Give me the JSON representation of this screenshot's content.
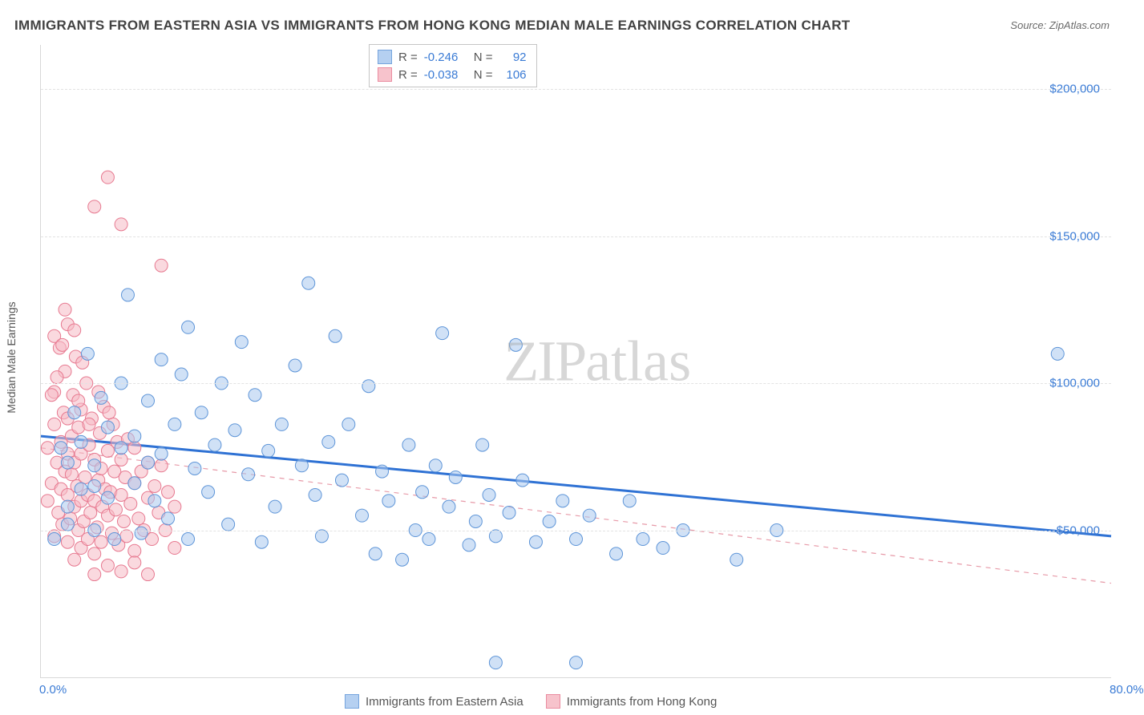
{
  "title": "IMMIGRANTS FROM EASTERN ASIA VS IMMIGRANTS FROM HONG KONG MEDIAN MALE EARNINGS CORRELATION CHART",
  "source_label": "Source:",
  "source_value": "ZipAtlas.com",
  "ylabel": "Median Male Earnings",
  "watermark": "ZIPatlas",
  "chart": {
    "type": "scatter",
    "xlim": [
      0,
      80
    ],
    "ylim": [
      0,
      215000
    ],
    "xtick_labels": {
      "0": "0.0%",
      "80": "80.0%"
    },
    "ytick_values": [
      50000,
      100000,
      150000,
      200000
    ],
    "ytick_labels": [
      "$50,000",
      "$100,000",
      "$150,000",
      "$200,000"
    ],
    "background_color": "#ffffff",
    "grid_color": "#e2e2e2",
    "axis_color": "#d8d8d8",
    "tick_label_color": "#3a7bd5",
    "marker_radius": 8,
    "series": [
      {
        "name": "Immigrants from Eastern Asia",
        "fill_color": "#a9c8ef",
        "stroke_color": "#5e95d8",
        "fill_opacity": 0.55,
        "R": "-0.246",
        "N": "92",
        "trend": {
          "y_at_x0": 82000,
          "y_at_xmax": 48000,
          "stroke": "#2f72d4",
          "width": 3,
          "dash": "none"
        },
        "points": [
          [
            1,
            47000
          ],
          [
            1.5,
            78000
          ],
          [
            2,
            73000
          ],
          [
            2,
            58000
          ],
          [
            2.5,
            90000
          ],
          [
            3,
            64000
          ],
          [
            3,
            80000
          ],
          [
            3.5,
            110000
          ],
          [
            4,
            50000
          ],
          [
            4,
            72000
          ],
          [
            4.5,
            95000
          ],
          [
            5,
            61000
          ],
          [
            5,
            85000
          ],
          [
            5.5,
            47000
          ],
          [
            6,
            78000
          ],
          [
            6,
            100000
          ],
          [
            6.5,
            130000
          ],
          [
            7,
            66000
          ],
          [
            7,
            82000
          ],
          [
            7.5,
            49000
          ],
          [
            8,
            73000
          ],
          [
            8,
            94000
          ],
          [
            8.5,
            60000
          ],
          [
            9,
            108000
          ],
          [
            9,
            76000
          ],
          [
            9.5,
            54000
          ],
          [
            10,
            86000
          ],
          [
            10.5,
            103000
          ],
          [
            11,
            47000
          ],
          [
            11,
            119000
          ],
          [
            11.5,
            71000
          ],
          [
            12,
            90000
          ],
          [
            12.5,
            63000
          ],
          [
            13,
            79000
          ],
          [
            13.5,
            100000
          ],
          [
            14,
            52000
          ],
          [
            14.5,
            84000
          ],
          [
            15,
            114000
          ],
          [
            15.5,
            69000
          ],
          [
            16,
            96000
          ],
          [
            16.5,
            46000
          ],
          [
            17,
            77000
          ],
          [
            17.5,
            58000
          ],
          [
            18,
            86000
          ],
          [
            19,
            106000
          ],
          [
            19.5,
            72000
          ],
          [
            20,
            134000
          ],
          [
            20.5,
            62000
          ],
          [
            21,
            48000
          ],
          [
            21.5,
            80000
          ],
          [
            22,
            116000
          ],
          [
            22.5,
            67000
          ],
          [
            23,
            86000
          ],
          [
            24,
            55000
          ],
          [
            24.5,
            99000
          ],
          [
            25,
            42000
          ],
          [
            25.5,
            70000
          ],
          [
            26,
            60000
          ],
          [
            27,
            40000
          ],
          [
            27.5,
            79000
          ],
          [
            28,
            50000
          ],
          [
            28.5,
            63000
          ],
          [
            29,
            47000
          ],
          [
            29.5,
            72000
          ],
          [
            30,
            117000
          ],
          [
            30.5,
            58000
          ],
          [
            31,
            68000
          ],
          [
            32,
            45000
          ],
          [
            32.5,
            53000
          ],
          [
            33,
            79000
          ],
          [
            33.5,
            62000
          ],
          [
            34,
            48000
          ],
          [
            34,
            5000
          ],
          [
            35,
            56000
          ],
          [
            35.5,
            113000
          ],
          [
            36,
            67000
          ],
          [
            37,
            46000
          ],
          [
            38,
            53000
          ],
          [
            39,
            60000
          ],
          [
            40,
            47000
          ],
          [
            41,
            55000
          ],
          [
            43,
            42000
          ],
          [
            44,
            60000
          ],
          [
            45,
            47000
          ],
          [
            40,
            5000
          ],
          [
            46.5,
            44000
          ],
          [
            48,
            50000
          ],
          [
            52,
            40000
          ],
          [
            76,
            110000
          ],
          [
            55,
            50000
          ],
          [
            2,
            52000
          ],
          [
            4,
            65000
          ]
        ]
      },
      {
        "name": "Immigrants from Hong Kong",
        "fill_color": "#f6b9c4",
        "stroke_color": "#e77990",
        "fill_opacity": 0.55,
        "R": "-0.038",
        "N": "106",
        "trend": {
          "y_at_x0": 78000,
          "y_at_xmax": 32000,
          "stroke": "#e79aa8",
          "width": 1.2,
          "dash": "6,6"
        },
        "points": [
          [
            0.5,
            60000
          ],
          [
            0.5,
            78000
          ],
          [
            0.8,
            66000
          ],
          [
            1,
            48000
          ],
          [
            1,
            86000
          ],
          [
            1,
            97000
          ],
          [
            1.2,
            73000
          ],
          [
            1.3,
            56000
          ],
          [
            1.4,
            112000
          ],
          [
            1.5,
            64000
          ],
          [
            1.5,
            80000
          ],
          [
            1.6,
            52000
          ],
          [
            1.7,
            90000
          ],
          [
            1.8,
            70000
          ],
          [
            1.8,
            104000
          ],
          [
            2,
            46000
          ],
          [
            2,
            62000
          ],
          [
            2,
            76000
          ],
          [
            2,
            88000
          ],
          [
            2.2,
            54000
          ],
          [
            2.3,
            69000
          ],
          [
            2.3,
            82000
          ],
          [
            2.4,
            96000
          ],
          [
            2.5,
            40000
          ],
          [
            2.5,
            58000
          ],
          [
            2.5,
            73000
          ],
          [
            2.6,
            109000
          ],
          [
            2.7,
            65000
          ],
          [
            2.8,
            50000
          ],
          [
            2.8,
            85000
          ],
          [
            3,
            44000
          ],
          [
            3,
            60000
          ],
          [
            3,
            76000
          ],
          [
            3,
            91000
          ],
          [
            3.2,
            53000
          ],
          [
            3.3,
            68000
          ],
          [
            3.4,
            100000
          ],
          [
            3.5,
            47000
          ],
          [
            3.5,
            62000
          ],
          [
            3.6,
            79000
          ],
          [
            3.7,
            56000
          ],
          [
            3.8,
            88000
          ],
          [
            4,
            42000
          ],
          [
            4,
            60000
          ],
          [
            4,
            74000
          ],
          [
            4,
            160000
          ],
          [
            4.2,
            51000
          ],
          [
            4.3,
            67000
          ],
          [
            4.4,
            83000
          ],
          [
            4.5,
            46000
          ],
          [
            4.5,
            71000
          ],
          [
            4.6,
            58000
          ],
          [
            4.7,
            92000
          ],
          [
            4.8,
            64000
          ],
          [
            5,
            38000
          ],
          [
            5,
            55000
          ],
          [
            5,
            77000
          ],
          [
            5,
            170000
          ],
          [
            5.2,
            63000
          ],
          [
            5.3,
            49000
          ],
          [
            5.4,
            86000
          ],
          [
            5.5,
            70000
          ],
          [
            5.6,
            57000
          ],
          [
            5.7,
            80000
          ],
          [
            5.8,
            45000
          ],
          [
            6,
            62000
          ],
          [
            6,
            74000
          ],
          [
            6,
            154000
          ],
          [
            6.2,
            53000
          ],
          [
            6.3,
            68000
          ],
          [
            6.4,
            48000
          ],
          [
            6.5,
            81000
          ],
          [
            6.7,
            59000
          ],
          [
            7,
            43000
          ],
          [
            7,
            66000
          ],
          [
            7,
            78000
          ],
          [
            7.3,
            54000
          ],
          [
            7.5,
            70000
          ],
          [
            7.7,
            50000
          ],
          [
            8,
            61000
          ],
          [
            8,
            73000
          ],
          [
            8.3,
            47000
          ],
          [
            8.5,
            65000
          ],
          [
            8.8,
            56000
          ],
          [
            9,
            72000
          ],
          [
            9,
            140000
          ],
          [
            9.3,
            50000
          ],
          [
            9.5,
            63000
          ],
          [
            10,
            44000
          ],
          [
            10,
            58000
          ],
          [
            2,
            120000
          ],
          [
            1,
            116000
          ],
          [
            2.5,
            118000
          ],
          [
            3.1,
            107000
          ],
          [
            1.8,
            125000
          ],
          [
            0.8,
            96000
          ],
          [
            1.2,
            102000
          ],
          [
            1.6,
            113000
          ],
          [
            2.8,
            94000
          ],
          [
            3.6,
            86000
          ],
          [
            4.3,
            97000
          ],
          [
            5.1,
            90000
          ],
          [
            6,
            36000
          ],
          [
            7,
            39000
          ],
          [
            8,
            35000
          ],
          [
            4,
            35000
          ]
        ]
      }
    ]
  },
  "legend": {
    "r_label": "R =",
    "n_label": "N ="
  }
}
